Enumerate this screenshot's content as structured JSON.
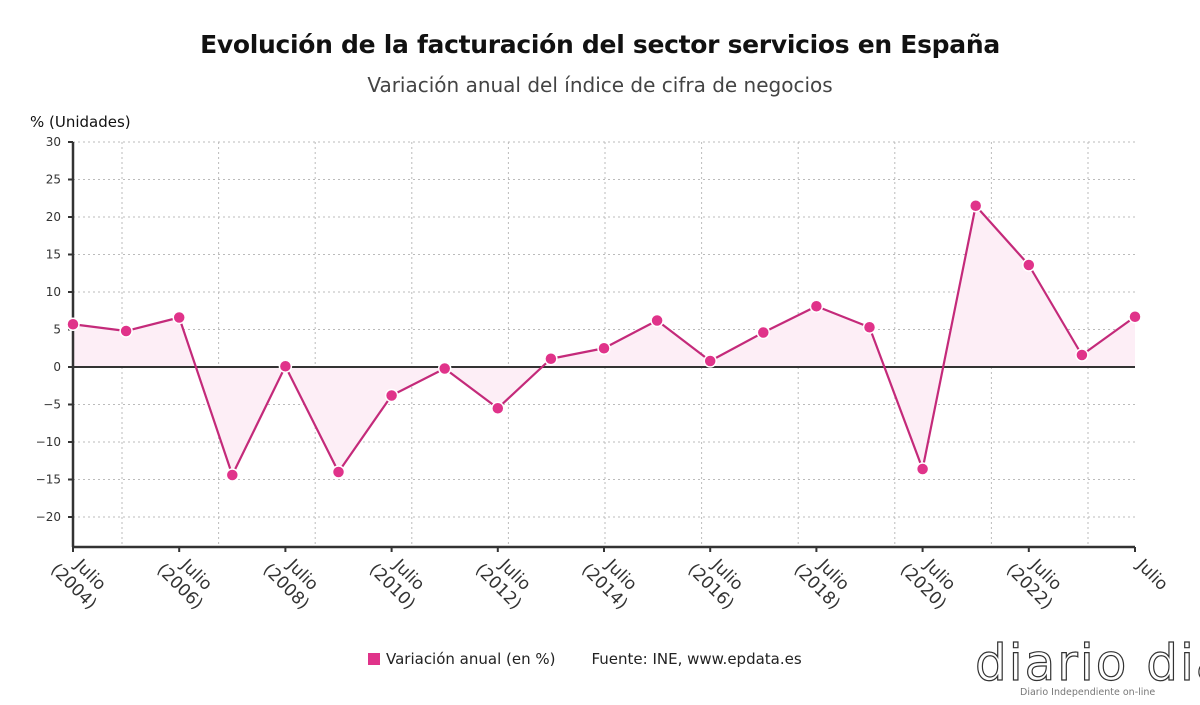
{
  "chart_data": {
    "type": "area",
    "title": "Evolución de la facturación del sector servicios en España",
    "subtitle": "Variación anual del índice de cifra de negocios",
    "ylabel": "% (Unidades)",
    "xlabel": "",
    "ylim": [
      -24,
      30
    ],
    "yticks": [
      30,
      25,
      20,
      15,
      10,
      5,
      0,
      -5,
      -10,
      -15,
      -20
    ],
    "ytick_labels": [
      "30",
      "25",
      "20",
      "15",
      "10",
      "5",
      "0",
      "−5",
      "−10",
      "−15",
      "−20"
    ],
    "x": [
      "Julio 2004",
      "Julio 2005",
      "Julio 2006",
      "Julio 2007",
      "Julio 2008",
      "Julio 2009",
      "Julio 2010",
      "Julio 2011",
      "Julio 2012",
      "Julio 2013",
      "Julio 2014",
      "Julio 2015",
      "Julio 2016",
      "Julio 2017",
      "Julio 2018",
      "Julio 2019",
      "Julio 2020",
      "Julio 2021",
      "Julio 2022",
      "Julio 2023",
      "Julio 2024"
    ],
    "xtick_labels": [
      {
        "index": 0,
        "line1": "Julio",
        "line2": "(2004)"
      },
      {
        "index": 2,
        "line1": "Julio",
        "line2": "(2006)"
      },
      {
        "index": 4,
        "line1": "Julio",
        "line2": "(2008)"
      },
      {
        "index": 6,
        "line1": "Julio",
        "line2": "(2010)"
      },
      {
        "index": 8,
        "line1": "Julio",
        "line2": "(2012)"
      },
      {
        "index": 10,
        "line1": "Julio",
        "line2": "(2014)"
      },
      {
        "index": 12,
        "line1": "Julio",
        "line2": "(2016)"
      },
      {
        "index": 14,
        "line1": "Julio",
        "line2": "(2018)"
      },
      {
        "index": 16,
        "line1": "Julio",
        "line2": "(2020)"
      },
      {
        "index": 18,
        "line1": "Julio",
        "line2": "(2022)"
      },
      {
        "index": 20,
        "line1": "Julio",
        "line2": ""
      }
    ],
    "series": [
      {
        "name": "Variación anual (en %)",
        "color": "#e0338a",
        "line_color": "#c42a7a",
        "fill_color": "#fdeef6",
        "values": [
          5.7,
          4.8,
          6.6,
          -14.4,
          0.1,
          -14.0,
          -3.8,
          -0.2,
          -5.5,
          1.1,
          2.5,
          6.2,
          0.8,
          4.6,
          8.1,
          5.3,
          -13.6,
          21.5,
          13.6,
          1.6,
          6.7
        ]
      }
    ],
    "grid": true,
    "legend_placement": "bottom"
  },
  "legend": {
    "label": "Variación anual (en %)",
    "source": "Fuente: INE, www.epdata.es"
  },
  "watermark": {
    "name": "diario dia",
    "tagline": "Diario Independiente on-line"
  }
}
